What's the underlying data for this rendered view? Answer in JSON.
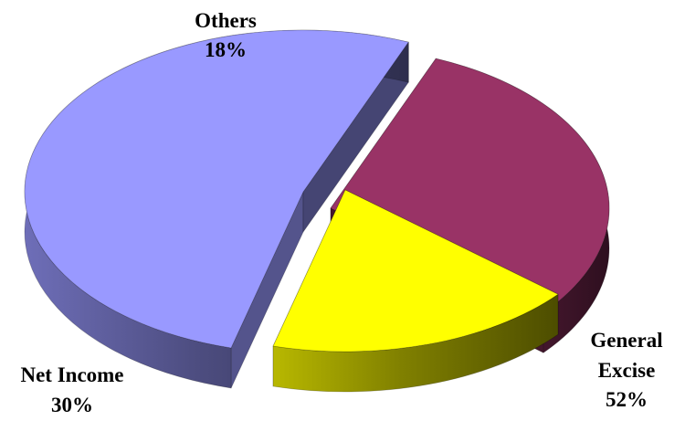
{
  "chart_data": {
    "type": "pie",
    "style": "3d-exploded",
    "categories": [
      "General Excise",
      "Net Income",
      "Others"
    ],
    "values": [
      52,
      30,
      18
    ],
    "value_suffix": "%",
    "colors": [
      "#9999ff",
      "#993366",
      "#ffff00"
    ],
    "labels": [
      {
        "lines": [
          "General",
          "Excise"
        ],
        "value_text": "52%"
      },
      {
        "lines": [
          "Net Income"
        ],
        "value_text": "30%"
      },
      {
        "lines": [
          "Others"
        ],
        "value_text": "18%"
      }
    ],
    "legend": "none"
  }
}
